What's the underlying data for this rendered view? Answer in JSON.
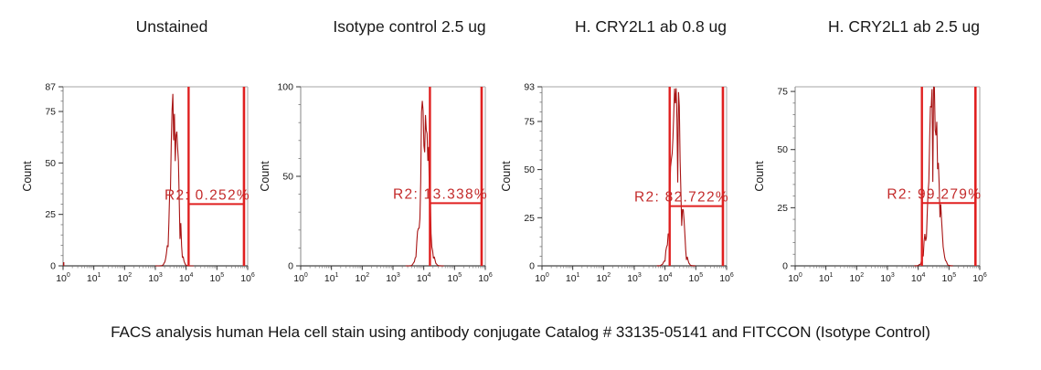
{
  "caption": "FACS analysis human Hela cell stain using antibody conjugate Catalog # 33135-05141 and FITCCON (Isotype Control)",
  "colors": {
    "curve": "#a81414",
    "gate": "#e02020",
    "r2_text": "#c32a2a",
    "plot_border": "#b8b8b8",
    "axis_left": "#999999",
    "axis_bottom": "#444444",
    "tick_major": "#333333",
    "tick_minor": "#777777",
    "title_text": "#1a1a1a"
  },
  "axis": {
    "y_label": "Count",
    "x_decade_base": "10",
    "x_decade_exponents": [
      "0",
      "1",
      "2",
      "3",
      "4",
      "5",
      "6"
    ]
  },
  "chart_data": [
    {
      "type": "histogram",
      "title": "Unstained",
      "x_scale": "log10",
      "x_range_decades": [
        0,
        6
      ],
      "y_label": "Count",
      "y_max": 87,
      "y_ticks": [
        0,
        25,
        50,
        75
      ],
      "y_top_label": "87",
      "y_minor_step": 5,
      "peak": {
        "center_decade": 3.62,
        "sigma_decades": 0.115,
        "height_counts": 90
      },
      "gate": {
        "label": "R2: 0.252%",
        "percent": 0.252,
        "from_decade": 4.08,
        "to_decade": 5.88,
        "line_y_counts": 30
      },
      "baseline_blip_decade": 0.02,
      "seed": 7
    },
    {
      "type": "histogram",
      "title": "Isotype control 2.5 ug",
      "x_scale": "log10",
      "x_range_decades": [
        0,
        6
      ],
      "y_label": "Count",
      "y_max": 100,
      "y_ticks": [
        0,
        50
      ],
      "y_top_label": "100",
      "y_minor_step": 10,
      "peak": {
        "center_decade": 4.03,
        "sigma_decades": 0.125,
        "height_counts": 104
      },
      "gate": {
        "label": "R2: 13.338%",
        "percent": 13.338,
        "from_decade": 4.2,
        "to_decade": 5.88,
        "line_y_counts": 35
      },
      "baseline_blip_decade": null,
      "seed": 13
    },
    {
      "type": "histogram",
      "title": "H. CRY2L1 ab 0.8 ug",
      "x_scale": "log10",
      "x_range_decades": [
        0,
        6
      ],
      "y_label": "Count",
      "y_max": 93,
      "y_ticks": [
        0,
        25,
        50,
        75
      ],
      "y_top_label": "93",
      "y_minor_step": 5,
      "peak": {
        "center_decade": 4.36,
        "sigma_decades": 0.145,
        "height_counts": 97
      },
      "gate": {
        "label": "R2: 82.722%",
        "percent": 82.722,
        "from_decade": 4.15,
        "to_decade": 5.88,
        "line_y_counts": 31
      },
      "baseline_blip_decade": null,
      "seed": 21
    },
    {
      "type": "histogram",
      "title": "H. CRY2L1 ab 2.5 ug",
      "x_scale": "log10",
      "x_range_decades": [
        0,
        6
      ],
      "y_label": "Count",
      "y_max": 77,
      "y_ticks": [
        0,
        25,
        50,
        75
      ],
      "y_top_label": null,
      "y_minor_step": 5,
      "peak": {
        "center_decade": 4.5,
        "sigma_decades": 0.15,
        "height_counts": 76
      },
      "gate": {
        "label": "R2: 99.279%",
        "percent": 99.279,
        "from_decade": 4.12,
        "to_decade": 5.86,
        "line_y_counts": 27
      },
      "baseline_blip_decade": null,
      "seed": 29
    }
  ]
}
